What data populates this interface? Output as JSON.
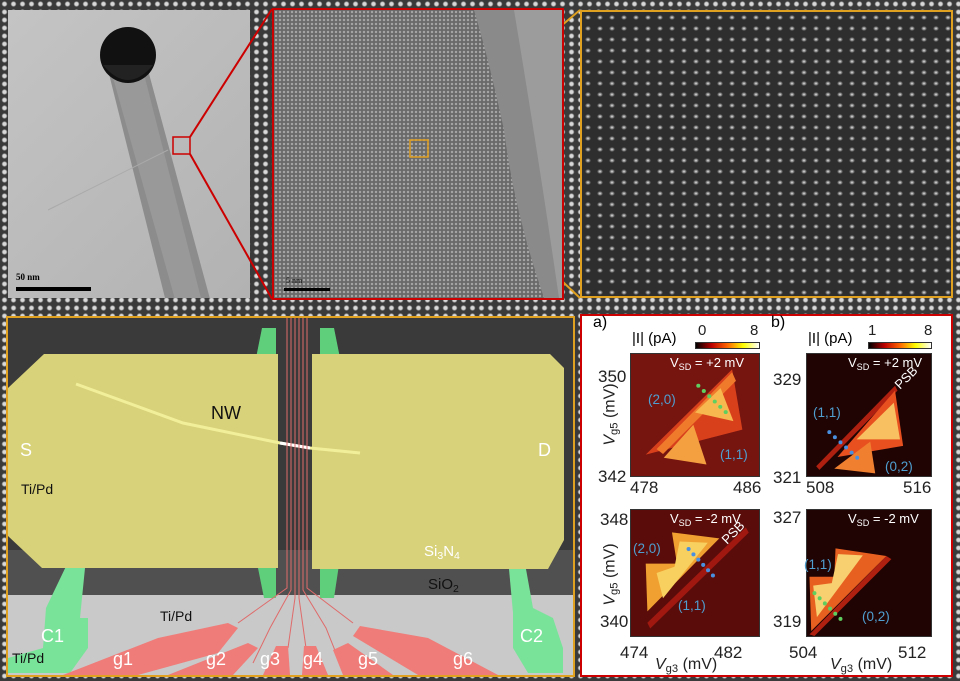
{
  "tem_panel": {
    "scale_bar": "50 nm"
  },
  "hrtem_panel": {
    "scale_bar": "5 nm"
  },
  "sem_panel": {
    "labels": {
      "nw": "NW",
      "source": "S",
      "drain": "D",
      "tipd_left": "Ti/Pd",
      "tipd_gate": "Ti/Pd",
      "tipd_c1": "Ti/Pd",
      "si3n4_a": "Si",
      "si3n4_b": "3",
      "si3n4_c": "N",
      "si3n4_d": "4",
      "sio2_a": "SiO",
      "sio2_b": "2",
      "c1": "C1",
      "c2": "C2"
    },
    "gates": [
      "g1",
      "g2",
      "g3",
      "g4",
      "g5",
      "g6"
    ],
    "colors": {
      "contacts": "#e8e07a",
      "gates": "#f07a78",
      "couplers": "#6ee08c",
      "border": "#e0a020"
    }
  },
  "chart_data": [
    {
      "type": "heatmap",
      "panel": "a)",
      "colorbar_label": "|I| (pA)",
      "colorbar_range": [
        0,
        8
      ],
      "colormap": "hot",
      "annotation": "V_SD = +2 mV",
      "xlim": [
        478,
        486
      ],
      "ylim": [
        342,
        350
      ],
      "xticks": [
        "478",
        "486"
      ],
      "yticks": [
        "342",
        "350"
      ],
      "ylabel": "V_g5 (mV)",
      "regions": [
        "(2,0)",
        "(1,1)"
      ]
    },
    {
      "type": "heatmap",
      "panel": "b)",
      "colorbar_label": "|I| (pA)",
      "colorbar_range": [
        1,
        8
      ],
      "colormap": "hot",
      "annotation": "V_SD = +2 mV",
      "xlim": [
        508,
        516
      ],
      "ylim": [
        321,
        329
      ],
      "xticks": [
        "508",
        "516"
      ],
      "yticks": [
        "321",
        "329"
      ],
      "regions": [
        "(1,1)",
        "(0,2)"
      ],
      "marker": "PSB"
    },
    {
      "type": "heatmap",
      "annotation": "V_SD = -2 mV",
      "xlim": [
        474,
        482
      ],
      "ylim": [
        340,
        348
      ],
      "xticks": [
        "474",
        "482"
      ],
      "yticks": [
        "340",
        "348"
      ],
      "xlabel": "V_g3 (mV)",
      "ylabel": "V_g5 (mV)",
      "regions": [
        "(2,0)",
        "(1,1)"
      ],
      "marker": "PSB"
    },
    {
      "type": "heatmap",
      "annotation": "V_SD = -2 mV",
      "xlim": [
        504,
        512
      ],
      "ylim": [
        319,
        327
      ],
      "xticks": [
        "504",
        "512"
      ],
      "yticks": [
        "319",
        "327"
      ],
      "xlabel": "V_g3 (mV)",
      "regions": [
        "(1,1)",
        "(0,2)"
      ]
    }
  ],
  "text": {
    "vsd_v": "V",
    "vsd_sub": "SD",
    "plus": " = +2 mV",
    "minus": " = -2 mV",
    "vg": "V",
    "g5": "g5",
    "g3": "g3",
    "mv": " (mV)",
    "I": "|I| (pA)",
    "psb": "PSB"
  }
}
